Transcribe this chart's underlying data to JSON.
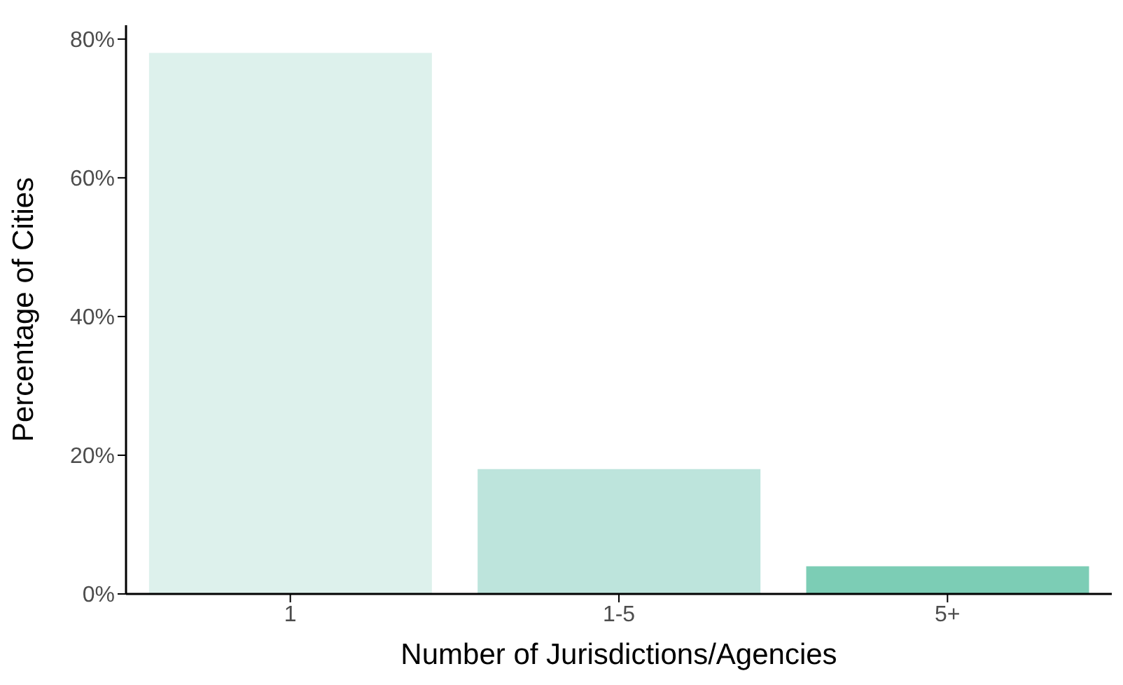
{
  "chart_data": {
    "type": "bar",
    "xlabel": "Number of Jurisdictions/Agencies",
    "ylabel": "Percentage of Cities",
    "categories": [
      "1",
      "1-5",
      "5+"
    ],
    "values": [
      78,
      18,
      4
    ],
    "colors": [
      "#ddf1ec",
      "#bde4dc",
      "#7ccdb5"
    ],
    "ylim": [
      0,
      82
    ],
    "yticks": [
      {
        "value": 0,
        "label": "0%"
      },
      {
        "value": 20,
        "label": "20%"
      },
      {
        "value": 40,
        "label": "40%"
      },
      {
        "value": 60,
        "label": "60%"
      },
      {
        "value": 80,
        "label": "80%"
      }
    ],
    "grid": false,
    "legend": false
  }
}
